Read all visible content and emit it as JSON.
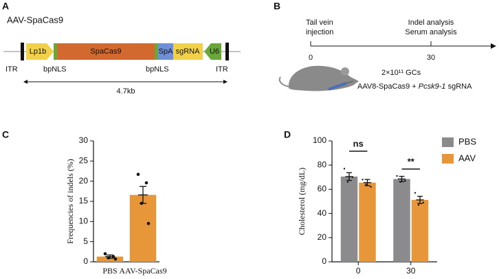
{
  "panel_a": {
    "label": "A",
    "title": "AAV-SpaCas9",
    "elements": [
      "Lp1b",
      "SpaCas9",
      "SpA",
      "sgRNA",
      "U6"
    ],
    "itr_left": "ITR",
    "itr_right": "ITR",
    "nls_left": "bpNLS",
    "nls_right": "bpNLS",
    "length": "4.7kb"
  },
  "panel_b": {
    "label": "B",
    "events": [
      {
        "day": 0,
        "lines": [
          "Tail vein",
          "injection"
        ]
      },
      {
        "day": 30,
        "lines": [
          "Indel analysis",
          "Serum analysis"
        ]
      }
    ],
    "dose": "2×10¹¹ GCs",
    "injection": [
      "AAV8-SpaCas9 + ",
      "Pcsk9-1",
      " sgRNA"
    ]
  },
  "chart_data": [
    {
      "label": "C",
      "type": "bar",
      "categories": [
        "PBS",
        "AAV-SpaCas9"
      ],
      "values": [
        1.3,
        16.6
      ],
      "errors": [
        0.4,
        2.1
      ],
      "points": [
        [
          2.0,
          1.3,
          1.0,
          0.7
        ],
        [
          21.7,
          19.6,
          14.5,
          9.5
        ]
      ],
      "color": "#e8963a",
      "ylabel": "Frequencies of indels (%)",
      "ylim": [
        0,
        30
      ],
      "yticks": [
        0,
        5,
        10,
        15,
        20,
        25,
        30
      ]
    },
    {
      "label": "D",
      "type": "grouped_bar",
      "categories": [
        "0",
        "30"
      ],
      "series": [
        {
          "name": "PBS",
          "color": "#8b8b8d",
          "values": [
            70.5,
            68.5
          ],
          "errors": [
            3.2,
            2.2
          ],
          "points": [
            [
              77,
              70,
              66
            ],
            [
              71,
              67,
              66
            ]
          ]
        },
        {
          "name": "AAV",
          "color": "#e8963a",
          "values": [
            65.5,
            51.2
          ],
          "errors": [
            2.6,
            3.0
          ],
          "points": [
            [
              68,
              62,
              64
            ],
            [
              57,
              49,
              47
            ]
          ]
        }
      ],
      "ylabel": "Cholesterol (mg/dL)",
      "ylim": [
        0,
        100
      ],
      "yticks": [
        0,
        20,
        40,
        60,
        80,
        100
      ],
      "annotations": [
        {
          "text": "ns",
          "category": 0
        },
        {
          "text": "**",
          "category": 1
        }
      ],
      "legend": "upper right"
    }
  ]
}
